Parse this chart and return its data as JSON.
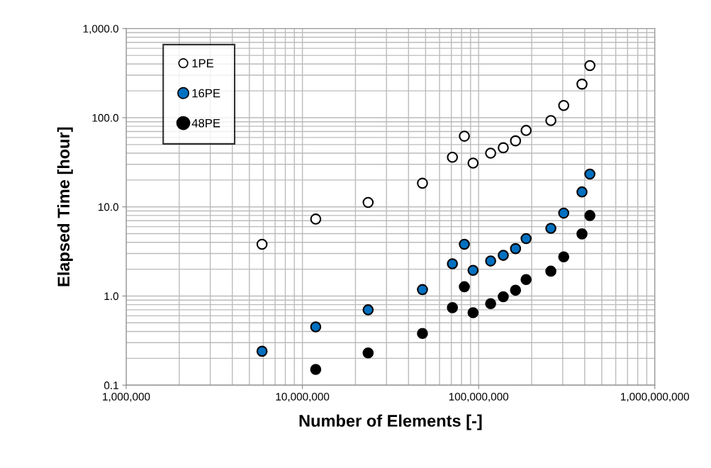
{
  "chart_data": {
    "type": "scatter",
    "xlabel": "Number of Elements [-]",
    "ylabel": "Elapsed Time [hour]",
    "log": "xy",
    "grid": true,
    "legend": "top left",
    "marker": "circle",
    "xlim": [
      1000000,
      1000000000
    ],
    "ylim": [
      0.1,
      1000
    ],
    "xticks": [
      {
        "value": 1000000,
        "label": "1,000,000"
      },
      {
        "value": 10000000,
        "label": "10,000,000"
      },
      {
        "value": 100000000,
        "label": "100,000,000"
      },
      {
        "value": 1000000000,
        "label": "1,000,000,000"
      }
    ],
    "yticks": [
      {
        "value": 0.1,
        "label": "0.1"
      },
      {
        "value": 1,
        "label": "1.0"
      },
      {
        "value": 10,
        "label": "10.0"
      },
      {
        "value": 100,
        "label": "100.0"
      },
      {
        "value": 1000,
        "label": "1,000.0"
      }
    ],
    "series": [
      {
        "name": "1PE",
        "color": "#ffffff",
        "x": [
          5900000,
          11900000,
          23600000,
          48000000,
          71000000,
          83000000,
          93000000,
          117000000,
          138000000,
          162000000,
          186000000,
          257000000,
          304000000,
          386000000,
          428000000
        ],
        "values": [
          3.8,
          7.3,
          11.2,
          18.4,
          36,
          62,
          31,
          40,
          46,
          55,
          72,
          93,
          137,
          238,
          384
        ]
      },
      {
        "name": "16PE",
        "color": "#0070c0",
        "x": [
          5900000,
          11900000,
          23600000,
          48000000,
          71000000,
          83000000,
          93000000,
          117000000,
          138000000,
          162000000,
          186000000,
          257000000,
          304000000,
          386000000,
          428000000
        ],
        "values": [
          0.24,
          0.45,
          0.7,
          1.18,
          2.3,
          3.8,
          1.94,
          2.47,
          2.86,
          3.4,
          4.4,
          5.75,
          8.5,
          14.7,
          23.3
        ]
      },
      {
        "name": "48PE",
        "color": "#000000",
        "x": [
          11900000,
          23600000,
          48000000,
          71000000,
          83000000,
          93000000,
          117000000,
          138000000,
          162000000,
          186000000,
          257000000,
          304000000,
          386000000,
          428000000
        ],
        "values": [
          0.15,
          0.23,
          0.38,
          0.74,
          1.27,
          0.65,
          0.82,
          0.98,
          1.16,
          1.53,
          1.9,
          2.75,
          4.97,
          8.0
        ]
      }
    ]
  }
}
